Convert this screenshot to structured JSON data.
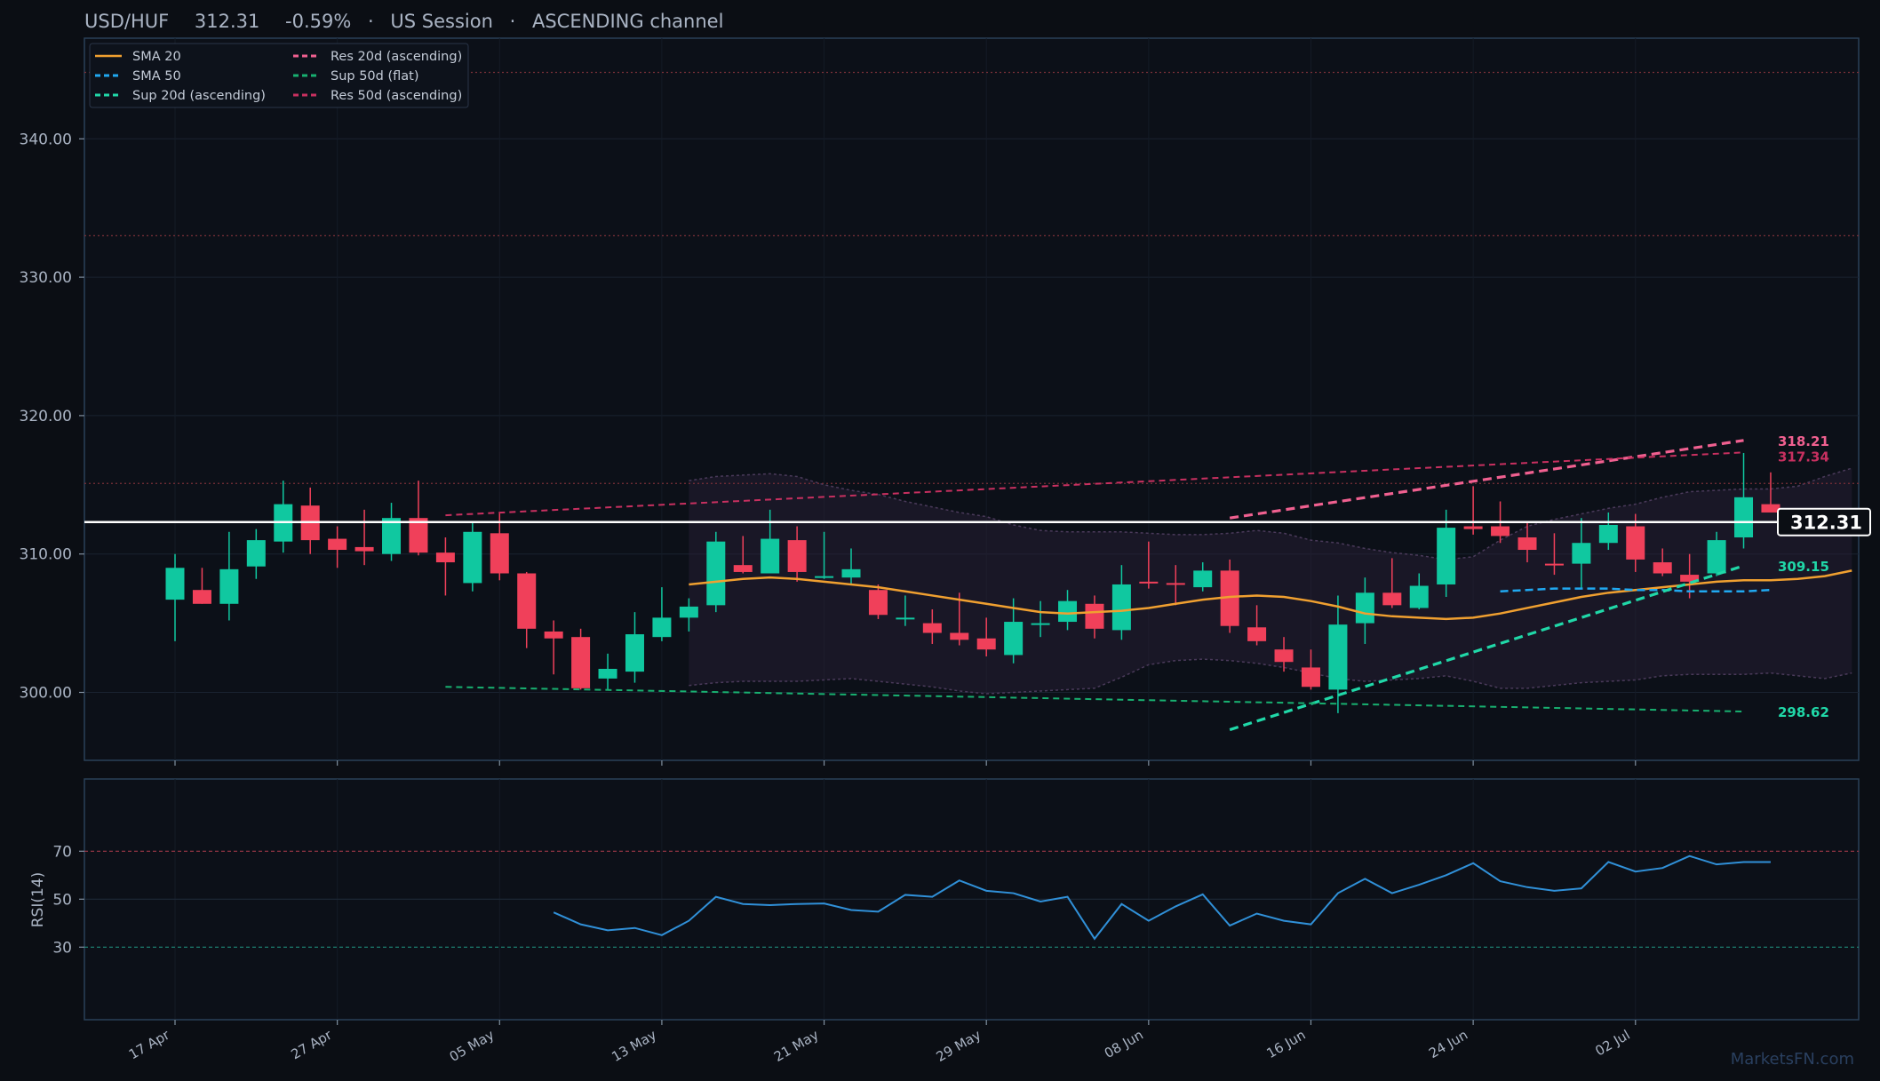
{
  "header": {
    "symbol": "USD/HUF",
    "price": "312.31",
    "change": "-0.59%",
    "session": "US Session",
    "pattern": "ASCENDING channel",
    "separator": "·"
  },
  "watermark": "MarketsFN.com",
  "colors": {
    "background": "#0b0e14",
    "up": "#10c8a0",
    "down": "#f0405a",
    "sma20": "#f0a030",
    "sma50": "#20a8f0",
    "sup20": "#20d8a8",
    "res20": "#f06090",
    "sup50": "#18b070",
    "res50": "#c83060",
    "rsi": "#3090d8",
    "band": "#4a3a5a",
    "panel_border": "#2a4058"
  },
  "chart_data": {
    "type": "candlestick",
    "ylim": [
      295,
      346
    ],
    "yticks": [
      300,
      310,
      320,
      330,
      340
    ],
    "ytick_labels": [
      "300.00",
      "310.00",
      "320.00",
      "330.00",
      "340.00"
    ],
    "xlabels": [
      {
        "i": 0,
        "label": "17 Apr"
      },
      {
        "i": 6,
        "label": "27 Apr"
      },
      {
        "i": 12,
        "label": "05 May"
      },
      {
        "i": 18,
        "label": "13 May"
      },
      {
        "i": 24,
        "label": "21 May"
      },
      {
        "i": 30,
        "label": "29 May"
      },
      {
        "i": 36,
        "label": "08 Jun"
      },
      {
        "i": 42,
        "label": "16 Jun"
      },
      {
        "i": 48,
        "label": "24 Jun"
      },
      {
        "i": 54,
        "label": "02 Jul"
      }
    ],
    "candles": [
      {
        "o": 306.7,
        "h": 310.0,
        "l": 303.7,
        "c": 309.0
      },
      {
        "o": 307.4,
        "h": 309.0,
        "l": 306.4,
        "c": 306.4
      },
      {
        "o": 306.4,
        "h": 311.6,
        "l": 305.2,
        "c": 308.9
      },
      {
        "o": 309.1,
        "h": 311.8,
        "l": 308.2,
        "c": 311.0
      },
      {
        "o": 310.9,
        "h": 315.3,
        "l": 310.1,
        "c": 313.6
      },
      {
        "o": 313.5,
        "h": 314.8,
        "l": 310.0,
        "c": 311.0
      },
      {
        "o": 311.1,
        "h": 312.0,
        "l": 309.0,
        "c": 310.3
      },
      {
        "o": 310.5,
        "h": 313.2,
        "l": 309.2,
        "c": 310.2
      },
      {
        "o": 310.0,
        "h": 313.7,
        "l": 309.5,
        "c": 312.6
      },
      {
        "o": 312.6,
        "h": 315.3,
        "l": 309.9,
        "c": 310.1
      },
      {
        "o": 310.1,
        "h": 311.2,
        "l": 307.0,
        "c": 309.4
      },
      {
        "o": 307.9,
        "h": 312.3,
        "l": 307.3,
        "c": 311.6
      },
      {
        "o": 311.5,
        "h": 313.0,
        "l": 308.1,
        "c": 308.6
      },
      {
        "o": 308.6,
        "h": 308.7,
        "l": 303.2,
        "c": 304.6
      },
      {
        "o": 304.4,
        "h": 305.2,
        "l": 301.3,
        "c": 303.9
      },
      {
        "o": 304.0,
        "h": 304.6,
        "l": 300.2,
        "c": 300.3
      },
      {
        "o": 301.0,
        "h": 302.8,
        "l": 300.2,
        "c": 301.7
      },
      {
        "o": 301.5,
        "h": 305.8,
        "l": 300.7,
        "c": 304.2
      },
      {
        "o": 304.0,
        "h": 307.6,
        "l": 303.7,
        "c": 305.4
      },
      {
        "o": 305.4,
        "h": 306.8,
        "l": 304.4,
        "c": 306.2
      },
      {
        "o": 306.3,
        "h": 311.6,
        "l": 305.8,
        "c": 310.9
      },
      {
        "o": 309.2,
        "h": 311.3,
        "l": 308.6,
        "c": 308.7
      },
      {
        "o": 308.6,
        "h": 313.2,
        "l": 308.6,
        "c": 311.1
      },
      {
        "o": 311.0,
        "h": 312.0,
        "l": 308.0,
        "c": 308.7
      },
      {
        "o": 308.3,
        "h": 311.6,
        "l": 308.2,
        "c": 308.4
      },
      {
        "o": 308.3,
        "h": 310.4,
        "l": 307.8,
        "c": 308.9
      },
      {
        "o": 307.4,
        "h": 307.8,
        "l": 305.3,
        "c": 305.6
      },
      {
        "o": 305.3,
        "h": 307.0,
        "l": 304.8,
        "c": 305.4
      },
      {
        "o": 305.0,
        "h": 306.0,
        "l": 303.5,
        "c": 304.3
      },
      {
        "o": 304.3,
        "h": 307.2,
        "l": 303.4,
        "c": 303.8
      },
      {
        "o": 303.9,
        "h": 305.4,
        "l": 302.6,
        "c": 303.1
      },
      {
        "o": 302.7,
        "h": 306.8,
        "l": 302.1,
        "c": 305.1
      },
      {
        "o": 304.9,
        "h": 306.6,
        "l": 304.0,
        "c": 305.0
      },
      {
        "o": 305.1,
        "h": 307.4,
        "l": 304.5,
        "c": 306.6
      },
      {
        "o": 306.4,
        "h": 307.0,
        "l": 303.9,
        "c": 304.6
      },
      {
        "o": 304.5,
        "h": 309.2,
        "l": 303.8,
        "c": 307.8
      },
      {
        "o": 308.0,
        "h": 310.9,
        "l": 307.5,
        "c": 307.9
      },
      {
        "o": 307.9,
        "h": 309.2,
        "l": 306.3,
        "c": 307.8
      },
      {
        "o": 307.6,
        "h": 309.4,
        "l": 307.3,
        "c": 308.8
      },
      {
        "o": 308.8,
        "h": 309.6,
        "l": 304.3,
        "c": 304.8
      },
      {
        "o": 304.7,
        "h": 306.3,
        "l": 303.4,
        "c": 303.7
      },
      {
        "o": 303.1,
        "h": 304.0,
        "l": 301.5,
        "c": 302.2
      },
      {
        "o": 301.8,
        "h": 303.1,
        "l": 300.2,
        "c": 300.4
      },
      {
        "o": 300.2,
        "h": 307.0,
        "l": 298.5,
        "c": 304.9
      },
      {
        "o": 305.0,
        "h": 308.3,
        "l": 303.5,
        "c": 307.2
      },
      {
        "o": 307.2,
        "h": 309.7,
        "l": 306.1,
        "c": 306.3
      },
      {
        "o": 306.1,
        "h": 308.6,
        "l": 306.0,
        "c": 307.7
      },
      {
        "o": 307.8,
        "h": 313.2,
        "l": 306.9,
        "c": 311.9
      },
      {
        "o": 312.0,
        "h": 314.9,
        "l": 311.4,
        "c": 311.8
      },
      {
        "o": 312.0,
        "h": 313.8,
        "l": 310.8,
        "c": 311.3
      },
      {
        "o": 311.2,
        "h": 312.3,
        "l": 309.4,
        "c": 310.3
      },
      {
        "o": 309.3,
        "h": 311.5,
        "l": 308.5,
        "c": 309.2
      },
      {
        "o": 309.3,
        "h": 312.6,
        "l": 307.5,
        "c": 310.8
      },
      {
        "o": 310.8,
        "h": 313.0,
        "l": 310.3,
        "c": 312.1
      },
      {
        "o": 312.0,
        "h": 312.9,
        "l": 308.7,
        "c": 309.6
      },
      {
        "o": 309.4,
        "h": 310.4,
        "l": 308.4,
        "c": 308.6
      },
      {
        "o": 308.5,
        "h": 310.0,
        "l": 306.8,
        "c": 308.0
      },
      {
        "o": 308.6,
        "h": 311.6,
        "l": 308.4,
        "c": 311.0
      },
      {
        "o": 311.2,
        "h": 317.3,
        "l": 310.4,
        "c": 314.1
      },
      {
        "o": 313.6,
        "h": 315.9,
        "l": 313.1,
        "c": 313.0
      }
    ],
    "sma20": {
      "start": 19,
      "values": [
        307.8,
        308.0,
        308.2,
        308.3,
        308.2,
        308.0,
        307.8,
        307.6,
        307.3,
        307.0,
        306.7,
        306.4,
        306.1,
        305.8,
        305.7,
        305.8,
        305.9,
        306.1,
        306.4,
        306.7,
        306.9,
        307.0,
        306.9,
        306.6,
        306.2,
        305.7,
        305.5,
        305.4,
        305.3,
        305.4,
        305.7,
        306.1,
        306.5,
        306.9,
        307.2,
        307.4,
        307.6,
        307.8,
        308.0,
        308.1,
        308.1,
        308.2,
        308.4,
        308.8
      ]
    },
    "sma50": {
      "start": 49,
      "values": [
        307.3,
        307.4,
        307.5,
        307.5,
        307.5,
        307.4,
        307.4,
        307.3,
        307.3,
        307.3,
        307.4
      ]
    },
    "band_upper": {
      "start": 19,
      "values": [
        315.3,
        315.6,
        315.7,
        315.8,
        315.6,
        315.0,
        314.6,
        314.3,
        313.8,
        313.4,
        313.0,
        312.7,
        312.1,
        311.7,
        311.6,
        311.6,
        311.6,
        311.5,
        311.4,
        311.4,
        311.5,
        311.7,
        311.5,
        311.0,
        310.8,
        310.4,
        310.1,
        309.9,
        309.6,
        309.8,
        311.0,
        312.0,
        312.5,
        312.9,
        313.3,
        313.6,
        314.1,
        314.5,
        314.6,
        314.7,
        314.7,
        314.9,
        315.6,
        316.2
      ]
    },
    "band_lower": {
      "start": 19,
      "values": [
        300.5,
        300.7,
        300.8,
        300.8,
        300.8,
        300.9,
        301.0,
        300.8,
        300.6,
        300.4,
        300.1,
        299.9,
        300.0,
        300.1,
        300.2,
        300.3,
        301.1,
        302.0,
        302.3,
        302.4,
        302.3,
        302.1,
        301.8,
        301.4,
        301.0,
        300.8,
        300.9,
        301.0,
        301.2,
        300.8,
        300.3,
        300.3,
        300.5,
        300.7,
        300.8,
        300.9,
        301.2,
        301.3,
        301.3,
        301.3,
        301.4,
        301.2,
        301.0,
        301.4
      ]
    },
    "levels": {
      "res20": {
        "from": {
          "i": 39,
          "v": 312.6
        },
        "to": {
          "i": 58,
          "v": 318.21
        },
        "label": "318.21"
      },
      "res50": {
        "from": {
          "i": 10,
          "v": 312.8
        },
        "to": {
          "i": 58,
          "v": 317.34
        },
        "label": "317.34"
      },
      "sup20": {
        "from": {
          "i": 39,
          "v": 297.3
        },
        "to": {
          "i": 58,
          "v": 309.15
        },
        "label": "309.15"
      },
      "sup50": {
        "from": {
          "i": 10,
          "v": 300.4
        },
        "to": {
          "i": 58,
          "v": 298.62
        },
        "label": "298.62"
      }
    },
    "hlines": [
      344.8,
      333.0,
      315.1
    ],
    "last_price": 312.31,
    "last_price_label": "312.31",
    "legend": [
      {
        "label": "SMA 20",
        "color": "#f0a030",
        "style": "solid"
      },
      {
        "label": "SMA 50",
        "color": "#20a8f0",
        "style": "dash"
      },
      {
        "label": "Sup 20d (ascending)",
        "color": "#20d8a8",
        "style": "dash"
      },
      {
        "label": "Res 20d (ascending)",
        "color": "#f06090",
        "style": "dash"
      },
      {
        "label": "Sup 50d (flat)",
        "color": "#18b070",
        "style": "dash"
      },
      {
        "label": "Res 50d (ascending)",
        "color": "#c83060",
        "style": "dash"
      }
    ],
    "rsi": {
      "label": "RSI(14)",
      "ylim": [
        0,
        100
      ],
      "yticks": [
        30,
        50,
        70
      ],
      "start": 14,
      "values": [
        44.5,
        39.5,
        37.0,
        38.0,
        35.0,
        41.0,
        51.0,
        48.0,
        47.5,
        48.0,
        48.2,
        45.5,
        44.8,
        51.8,
        51.0,
        57.8,
        53.5,
        52.5,
        49.0,
        51.0,
        33.5,
        48.0,
        41.0,
        47.0,
        52.0,
        39.0,
        44.0,
        41.0,
        39.5,
        52.5,
        58.5,
        52.5,
        56.0,
        60.0,
        65.0,
        57.5,
        55.0,
        53.5,
        54.5,
        65.5,
        61.5,
        63.0,
        68.0,
        64.5,
        65.5,
        65.5
      ]
    }
  }
}
